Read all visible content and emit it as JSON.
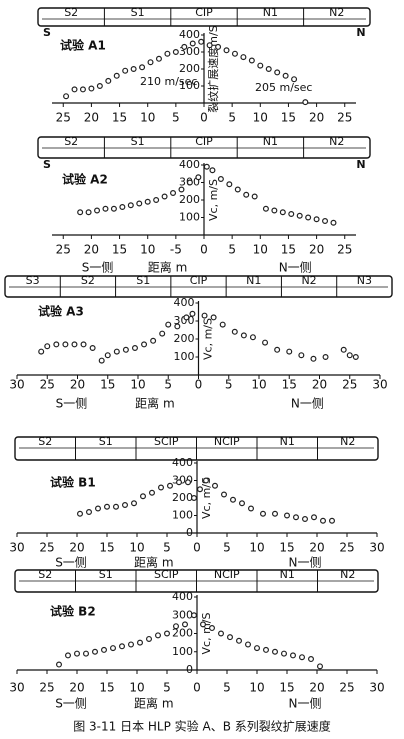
{
  "caption": "图 3-11 日本 HLP 实验 A、B 系列裂纹扩展速度",
  "chart_data": [
    {
      "type": "scatter",
      "title": "试验 A1",
      "pipe_sections": [
        "S2",
        "S1",
        "CIP",
        "N1",
        "N2"
      ],
      "ends": [
        "S",
        "N"
      ],
      "ylabel": "裂纹扩展速度m/S",
      "annotations": [
        "210 m/sec",
        "205 m/sec"
      ],
      "color": "#222",
      "x": [
        -24.5,
        -23,
        -21.5,
        -20,
        -18.5,
        -17,
        -15.5,
        -14,
        -12.5,
        -11,
        -9.5,
        -8,
        -6.5,
        -5,
        -3.5,
        -2,
        -0.5,
        1,
        2.5,
        4,
        5.5,
        7,
        8.5,
        10,
        11.5,
        13,
        14.5,
        16,
        18
      ],
      "values": [
        40,
        80,
        80,
        85,
        100,
        130,
        160,
        190,
        200,
        210,
        240,
        260,
        290,
        300,
        330,
        350,
        360,
        340,
        330,
        310,
        290,
        270,
        250,
        220,
        200,
        180,
        160,
        140,
        5
      ],
      "xlim": [
        -27,
        27
      ],
      "ylim": [
        0,
        400
      ],
      "xticks": [
        {
          "value": -25,
          "label": "25"
        },
        {
          "value": -20,
          "label": "20"
        },
        {
          "value": -15,
          "label": "15"
        },
        {
          "value": -10,
          "label": "10"
        },
        {
          "value": -5,
          "label": "5"
        },
        0,
        5,
        10,
        15,
        20,
        25
      ],
      "yticks": [
        100,
        200,
        300,
        400
      ]
    },
    {
      "type": "scatter",
      "title": "试验 A2",
      "pipe_sections": [
        "S2",
        "S1",
        "CIP",
        "N1",
        "N2"
      ],
      "ends": [
        "S",
        "N"
      ],
      "ylabel": "Vc, m/S",
      "xlabel_left": "S一侧",
      "xlabel": "距离 m",
      "xlabel_right": "N一侧",
      "color": "#222",
      "x": [
        -22,
        -20.5,
        -19,
        -17.5,
        -16,
        -14.5,
        -13,
        -11.5,
        -10,
        -8.5,
        -7,
        -5.5,
        -4,
        -2.5,
        -1,
        0.5,
        1.5,
        3,
        4.5,
        6,
        7.5,
        9,
        11,
        12.5,
        14,
        15.5,
        17,
        18.5,
        20,
        21.5,
        23
      ],
      "values": [
        130,
        130,
        140,
        150,
        150,
        160,
        170,
        180,
        190,
        200,
        220,
        240,
        260,
        300,
        330,
        390,
        370,
        320,
        290,
        260,
        230,
        220,
        150,
        140,
        130,
        120,
        110,
        100,
        90,
        80,
        70
      ],
      "xlim": [
        -27,
        27
      ],
      "ylim": [
        0,
        400
      ],
      "xticks": [
        {
          "value": -25,
          "label": "25"
        },
        {
          "value": -20,
          "label": "20"
        },
        {
          "value": -15,
          "label": "15"
        },
        {
          "value": -10,
          "label": "10"
        },
        -5,
        0,
        5,
        10,
        15,
        20,
        25
      ],
      "yticks": [
        100,
        200,
        300,
        400
      ]
    },
    {
      "type": "scatter",
      "title": "试验 A3",
      "pipe_sections": [
        "S3",
        "S2",
        "S1",
        "CIP",
        "N1",
        "N2",
        "N3"
      ],
      "ylabel": "Vc, m/S",
      "xlabel_left": "S一侧",
      "xlabel": "距离 m",
      "xlabel_right": "N一侧",
      "color": "#222",
      "x": [
        -26,
        -25,
        -23.5,
        -22,
        -20.5,
        -19,
        -17.5,
        -16,
        -15,
        -13.5,
        -12,
        -10.5,
        -9,
        -7.5,
        -6,
        -5,
        -3.5,
        -2,
        -1,
        1,
        2.5,
        4,
        6,
        7.5,
        9,
        11,
        13,
        15,
        17,
        19,
        21,
        24,
        25,
        26
      ],
      "values": [
        130,
        160,
        170,
        170,
        170,
        170,
        150,
        80,
        110,
        130,
        140,
        150,
        170,
        190,
        230,
        280,
        270,
        320,
        340,
        330,
        320,
        280,
        240,
        220,
        210,
        180,
        140,
        130,
        110,
        90,
        100,
        140,
        110,
        100
      ],
      "xlim": [
        -30,
        30
      ],
      "ylim": [
        0,
        400
      ],
      "xticks": [
        {
          "value": -30,
          "label": "30"
        },
        {
          "value": -25,
          "label": "25"
        },
        {
          "value": -20,
          "label": "20"
        },
        {
          "value": -15,
          "label": "15"
        },
        {
          "value": -10,
          "label": "10"
        },
        {
          "value": -5,
          "label": "5"
        },
        0,
        5,
        10,
        15,
        20,
        25,
        30
      ],
      "yticks": [
        100,
        200,
        300,
        400
      ]
    },
    {
      "type": "scatter",
      "title": "试验 B1",
      "pipe_sections": [
        "S2",
        "S1",
        "SCIP",
        "NCIP",
        "N1",
        "N2"
      ],
      "ylabel": "Vc, m/S",
      "xlabel_left": "S一侧",
      "xlabel": "距离 m",
      "xlabel_right": "N一侧",
      "color": "#222",
      "x": [
        -19.5,
        -18,
        -16.5,
        -15,
        -13.5,
        -12,
        -10.5,
        -9,
        -7.5,
        -6,
        -4.5,
        -3,
        -1.5,
        -0.5,
        0.5,
        1.5,
        3,
        4.5,
        6,
        7.5,
        9,
        11,
        13,
        15,
        16.5,
        18,
        19.5,
        21,
        22.5
      ],
      "values": [
        110,
        120,
        140,
        150,
        150,
        160,
        170,
        210,
        230,
        260,
        270,
        290,
        290,
        200,
        250,
        300,
        270,
        220,
        190,
        170,
        140,
        110,
        110,
        100,
        90,
        80,
        90,
        70,
        70
      ],
      "xlim": [
        -30,
        30
      ],
      "ylim": [
        0,
        400
      ],
      "xticks": [
        {
          "value": -30,
          "label": "30"
        },
        {
          "value": -25,
          "label": "25"
        },
        {
          "value": -20,
          "label": "20"
        },
        {
          "value": -15,
          "label": "15"
        },
        {
          "value": -10,
          "label": "10"
        },
        {
          "value": -5,
          "label": "5"
        },
        0,
        5,
        10,
        15,
        20,
        25,
        30
      ],
      "yticks": [
        0,
        100,
        200,
        300,
        400
      ]
    },
    {
      "type": "scatter",
      "title": "试验 B2",
      "pipe_sections": [
        "S2",
        "S1",
        "SCIP",
        "NCIP",
        "N1",
        "N2"
      ],
      "ylabel": "Vc, m/S",
      "xlabel_left": "S一侧",
      "xlabel": "距离 m",
      "xlabel_right": "N一侧",
      "color": "#222",
      "x": [
        -23,
        -21.5,
        -20,
        -18.5,
        -17,
        -15.5,
        -14,
        -12.5,
        -11,
        -9.5,
        -8,
        -6.5,
        -5,
        -3.5,
        -2,
        -0.5,
        1,
        2.5,
        4,
        5.5,
        7,
        8.5,
        10,
        11.5,
        13,
        14.5,
        16,
        17.5,
        19,
        20.5
      ],
      "values": [
        30,
        80,
        90,
        90,
        100,
        110,
        120,
        130,
        140,
        150,
        170,
        190,
        200,
        240,
        250,
        300,
        250,
        230,
        200,
        180,
        160,
        140,
        120,
        110,
        100,
        90,
        80,
        70,
        60,
        20
      ],
      "xlim": [
        -30,
        30
      ],
      "ylim": [
        0,
        400
      ],
      "xticks": [
        {
          "value": -30,
          "label": "30"
        },
        {
          "value": -25,
          "label": "25"
        },
        {
          "value": -20,
          "label": "20"
        },
        {
          "value": -15,
          "label": "15"
        },
        {
          "value": -10,
          "label": "10"
        },
        {
          "value": -5,
          "label": "5"
        },
        0,
        5,
        10,
        15,
        20,
        25,
        30
      ],
      "yticks": [
        0,
        100,
        200,
        300,
        400
      ]
    }
  ]
}
